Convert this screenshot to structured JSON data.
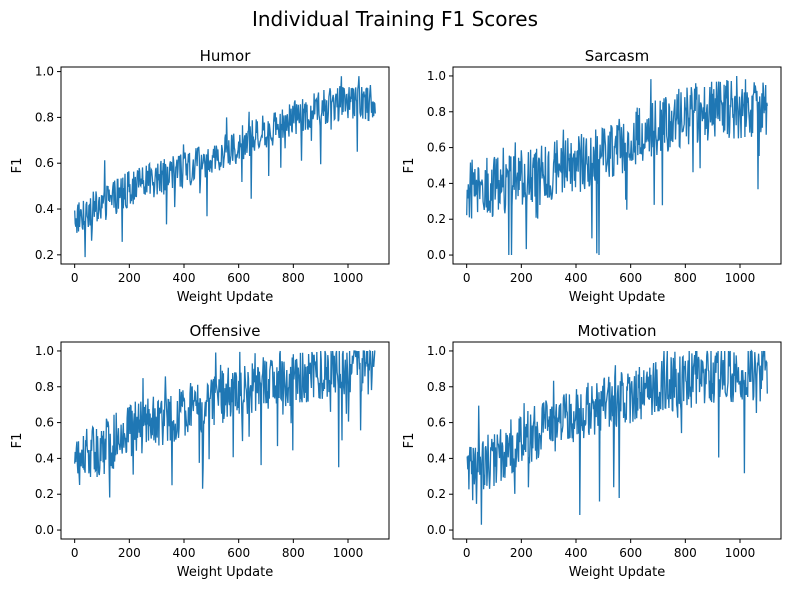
{
  "figure": {
    "title": "Individual Training F1 Scores"
  },
  "series_color": "#1f77b4",
  "chart_data": [
    {
      "type": "line",
      "title": "Humor",
      "xlabel": "Weight Update",
      "ylabel": "F1",
      "xlim": [
        -50,
        1150
      ],
      "ylim": [
        0.16,
        1.02
      ],
      "xticks": [
        0,
        200,
        400,
        600,
        800,
        1000
      ],
      "yticks": [
        0.2,
        0.4,
        0.6,
        0.8,
        1.0
      ],
      "ytick_labels": [
        "0.2",
        "0.4",
        "0.6",
        "0.8",
        "1.0"
      ],
      "grid": false,
      "series": [
        {
          "x": [
            0,
            100,
            200,
            300,
            400,
            500,
            600,
            700,
            800,
            900,
            1000,
            1100
          ],
          "y": [
            0.36,
            0.42,
            0.49,
            0.53,
            0.57,
            0.62,
            0.68,
            0.74,
            0.8,
            0.84,
            0.87,
            0.86
          ],
          "noise": 0.06,
          "y_min": 0.19,
          "y_max": 0.98
        }
      ]
    },
    {
      "type": "line",
      "title": "Sarcasm",
      "xlabel": "Weight Update",
      "ylabel": "F1",
      "xlim": [
        -50,
        1150
      ],
      "ylim": [
        -0.05,
        1.05
      ],
      "xticks": [
        0,
        200,
        400,
        600,
        800,
        1000
      ],
      "yticks": [
        0.0,
        0.2,
        0.4,
        0.6,
        0.8,
        1.0
      ],
      "ytick_labels": [
        "0.0",
        "0.2",
        "0.4",
        "0.6",
        "0.8",
        "1.0"
      ],
      "grid": false,
      "series": [
        {
          "x": [
            0,
            100,
            200,
            300,
            400,
            500,
            600,
            700,
            800,
            900,
            1000,
            1100
          ],
          "y": [
            0.36,
            0.38,
            0.42,
            0.46,
            0.51,
            0.56,
            0.64,
            0.72,
            0.78,
            0.81,
            0.82,
            0.83
          ],
          "noise": 0.13,
          "y_min": 0.0,
          "y_max": 1.0
        }
      ]
    },
    {
      "type": "line",
      "title": "Offensive",
      "xlabel": "Weight Update",
      "ylabel": "F1",
      "xlim": [
        -50,
        1150
      ],
      "ylim": [
        -0.05,
        1.05
      ],
      "xticks": [
        0,
        200,
        400,
        600,
        800,
        1000
      ],
      "yticks": [
        0.0,
        0.2,
        0.4,
        0.6,
        0.8,
        1.0
      ],
      "ytick_labels": [
        "0.0",
        "0.2",
        "0.4",
        "0.6",
        "0.8",
        "1.0"
      ],
      "grid": false,
      "series": [
        {
          "x": [
            0,
            100,
            200,
            300,
            400,
            500,
            600,
            700,
            800,
            900,
            1000,
            1100
          ],
          "y": [
            0.38,
            0.45,
            0.55,
            0.62,
            0.66,
            0.72,
            0.77,
            0.81,
            0.85,
            0.88,
            0.9,
            0.9
          ],
          "noise": 0.12,
          "y_min": 0.0,
          "y_max": 1.0
        }
      ]
    },
    {
      "type": "line",
      "title": "Motivation",
      "xlabel": "Weight Update",
      "ylabel": "F1",
      "xlim": [
        -50,
        1150
      ],
      "ylim": [
        -0.05,
        1.05
      ],
      "xticks": [
        0,
        200,
        400,
        600,
        800,
        1000
      ],
      "yticks": [
        0.0,
        0.2,
        0.4,
        0.6,
        0.8,
        1.0
      ],
      "ytick_labels": [
        "0.0",
        "0.2",
        "0.4",
        "0.6",
        "0.8",
        "1.0"
      ],
      "grid": false,
      "series": [
        {
          "x": [
            0,
            100,
            200,
            300,
            400,
            500,
            600,
            700,
            800,
            900,
            1000,
            1100
          ],
          "y": [
            0.3,
            0.4,
            0.5,
            0.58,
            0.64,
            0.7,
            0.75,
            0.79,
            0.83,
            0.86,
            0.87,
            0.87
          ],
          "noise": 0.12,
          "y_min": 0.0,
          "y_max": 1.0
        }
      ]
    }
  ]
}
